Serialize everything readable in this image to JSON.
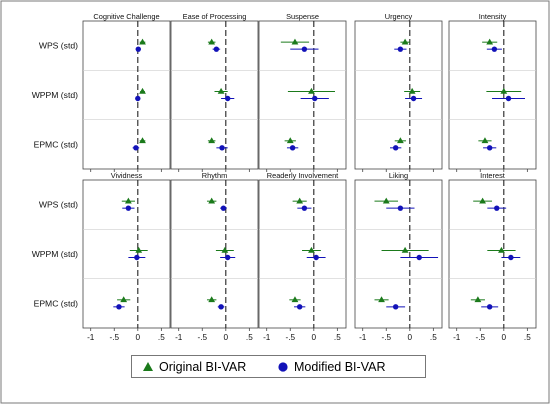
{
  "chart_data": {
    "type": "scatter",
    "description_layout": "small multiples, 2 rows x 5 columns",
    "x_axis": {
      "ticks": [
        "-1",
        "-.5",
        "0",
        ".5"
      ],
      "xlim": [
        -1.1,
        0.62
      ]
    },
    "y_categories": [
      "WPS (std)",
      "WPPM (std)",
      "EPMC (std)"
    ],
    "reference_line": 0,
    "series": [
      {
        "name": "Original BI-VAR",
        "color": "#1b7a1b",
        "marker": "triangle"
      },
      {
        "name": "Modified BI-VAR",
        "color": "#1212b8",
        "marker": "circle"
      }
    ],
    "panels": [
      {
        "title": "Cognitive Challenge",
        "original": [
          [
            0.1,
            0.04,
            0.16
          ],
          [
            0.1,
            0.05,
            0.15
          ],
          [
            0.1,
            0.04,
            0.16
          ]
        ],
        "modified": [
          [
            0.01,
            -0.04,
            0.06
          ],
          [
            0.0,
            -0.05,
            0.05
          ],
          [
            -0.04,
            -0.11,
            0.03
          ]
        ]
      },
      {
        "title": "Ease of Processing",
        "original": [
          [
            -0.3,
            -0.38,
            -0.22
          ],
          [
            -0.1,
            -0.24,
            0.04
          ],
          [
            -0.3,
            -0.38,
            -0.22
          ]
        ],
        "modified": [
          [
            -0.2,
            -0.28,
            -0.12
          ],
          [
            0.04,
            -0.1,
            0.18
          ],
          [
            -0.08,
            -0.2,
            0.04
          ]
        ]
      },
      {
        "title": "Suspense",
        "original": [
          [
            -0.4,
            -0.7,
            -0.1
          ],
          [
            -0.05,
            -0.55,
            0.45
          ],
          [
            -0.5,
            -0.62,
            -0.38
          ]
        ],
        "modified": [
          [
            -0.2,
            -0.5,
            0.1
          ],
          [
            0.02,
            -0.28,
            0.32
          ],
          [
            -0.45,
            -0.57,
            -0.33
          ]
        ]
      },
      {
        "title": "Urgency",
        "original": [
          [
            -0.1,
            -0.2,
            0.0
          ],
          [
            0.05,
            -0.12,
            0.22
          ],
          [
            -0.2,
            -0.32,
            -0.08
          ]
        ],
        "modified": [
          [
            -0.2,
            -0.33,
            -0.07
          ],
          [
            0.08,
            -0.1,
            0.26
          ],
          [
            -0.3,
            -0.42,
            -0.18
          ]
        ]
      },
      {
        "title": "Intensity",
        "original": [
          [
            -0.3,
            -0.46,
            -0.14
          ],
          [
            0.0,
            -0.37,
            0.37
          ],
          [
            -0.4,
            -0.54,
            -0.26
          ]
        ],
        "modified": [
          [
            -0.2,
            -0.36,
            -0.04
          ],
          [
            0.1,
            -0.25,
            0.45
          ],
          [
            -0.3,
            -0.44,
            -0.16
          ]
        ]
      },
      {
        "title": "Vividness",
        "original": [
          [
            -0.2,
            -0.34,
            -0.06
          ],
          [
            0.02,
            -0.17,
            0.21
          ],
          [
            -0.3,
            -0.44,
            -0.16
          ]
        ],
        "modified": [
          [
            -0.2,
            -0.33,
            -0.07
          ],
          [
            -0.02,
            -0.2,
            0.16
          ],
          [
            -0.4,
            -0.52,
            -0.28
          ]
        ]
      },
      {
        "title": "Rhythm",
        "original": [
          [
            -0.3,
            -0.4,
            -0.2
          ],
          [
            -0.02,
            -0.21,
            0.17
          ],
          [
            -0.3,
            -0.4,
            -0.2
          ]
        ],
        "modified": [
          [
            -0.05,
            -0.12,
            0.02
          ],
          [
            0.04,
            -0.12,
            0.2
          ],
          [
            -0.1,
            -0.17,
            -0.03
          ]
        ]
      },
      {
        "title": "Readerly Involvement",
        "original": [
          [
            -0.3,
            -0.45,
            -0.15
          ],
          [
            -0.05,
            -0.25,
            0.15
          ],
          [
            -0.4,
            -0.52,
            -0.28
          ]
        ],
        "modified": [
          [
            -0.2,
            -0.35,
            -0.05
          ],
          [
            0.05,
            -0.15,
            0.25
          ],
          [
            -0.3,
            -0.42,
            -0.18
          ]
        ]
      },
      {
        "title": "Liking",
        "original": [
          [
            -0.5,
            -0.75,
            -0.25
          ],
          [
            -0.1,
            -0.6,
            0.4
          ],
          [
            -0.6,
            -0.75,
            -0.45
          ]
        ],
        "modified": [
          [
            -0.2,
            -0.5,
            0.1
          ],
          [
            0.2,
            -0.2,
            0.6
          ],
          [
            -0.3,
            -0.5,
            -0.1
          ]
        ]
      },
      {
        "title": "Interest",
        "original": [
          [
            -0.45,
            -0.65,
            -0.25
          ],
          [
            -0.05,
            -0.35,
            0.25
          ],
          [
            -0.55,
            -0.7,
            -0.4
          ]
        ],
        "modified": [
          [
            -0.15,
            -0.35,
            0.05
          ],
          [
            0.15,
            -0.05,
            0.35
          ],
          [
            -0.3,
            -0.48,
            -0.12
          ]
        ]
      }
    ]
  },
  "legend": {
    "original_label": "Original BI-VAR",
    "modified_label": "Modified BI-VAR"
  }
}
